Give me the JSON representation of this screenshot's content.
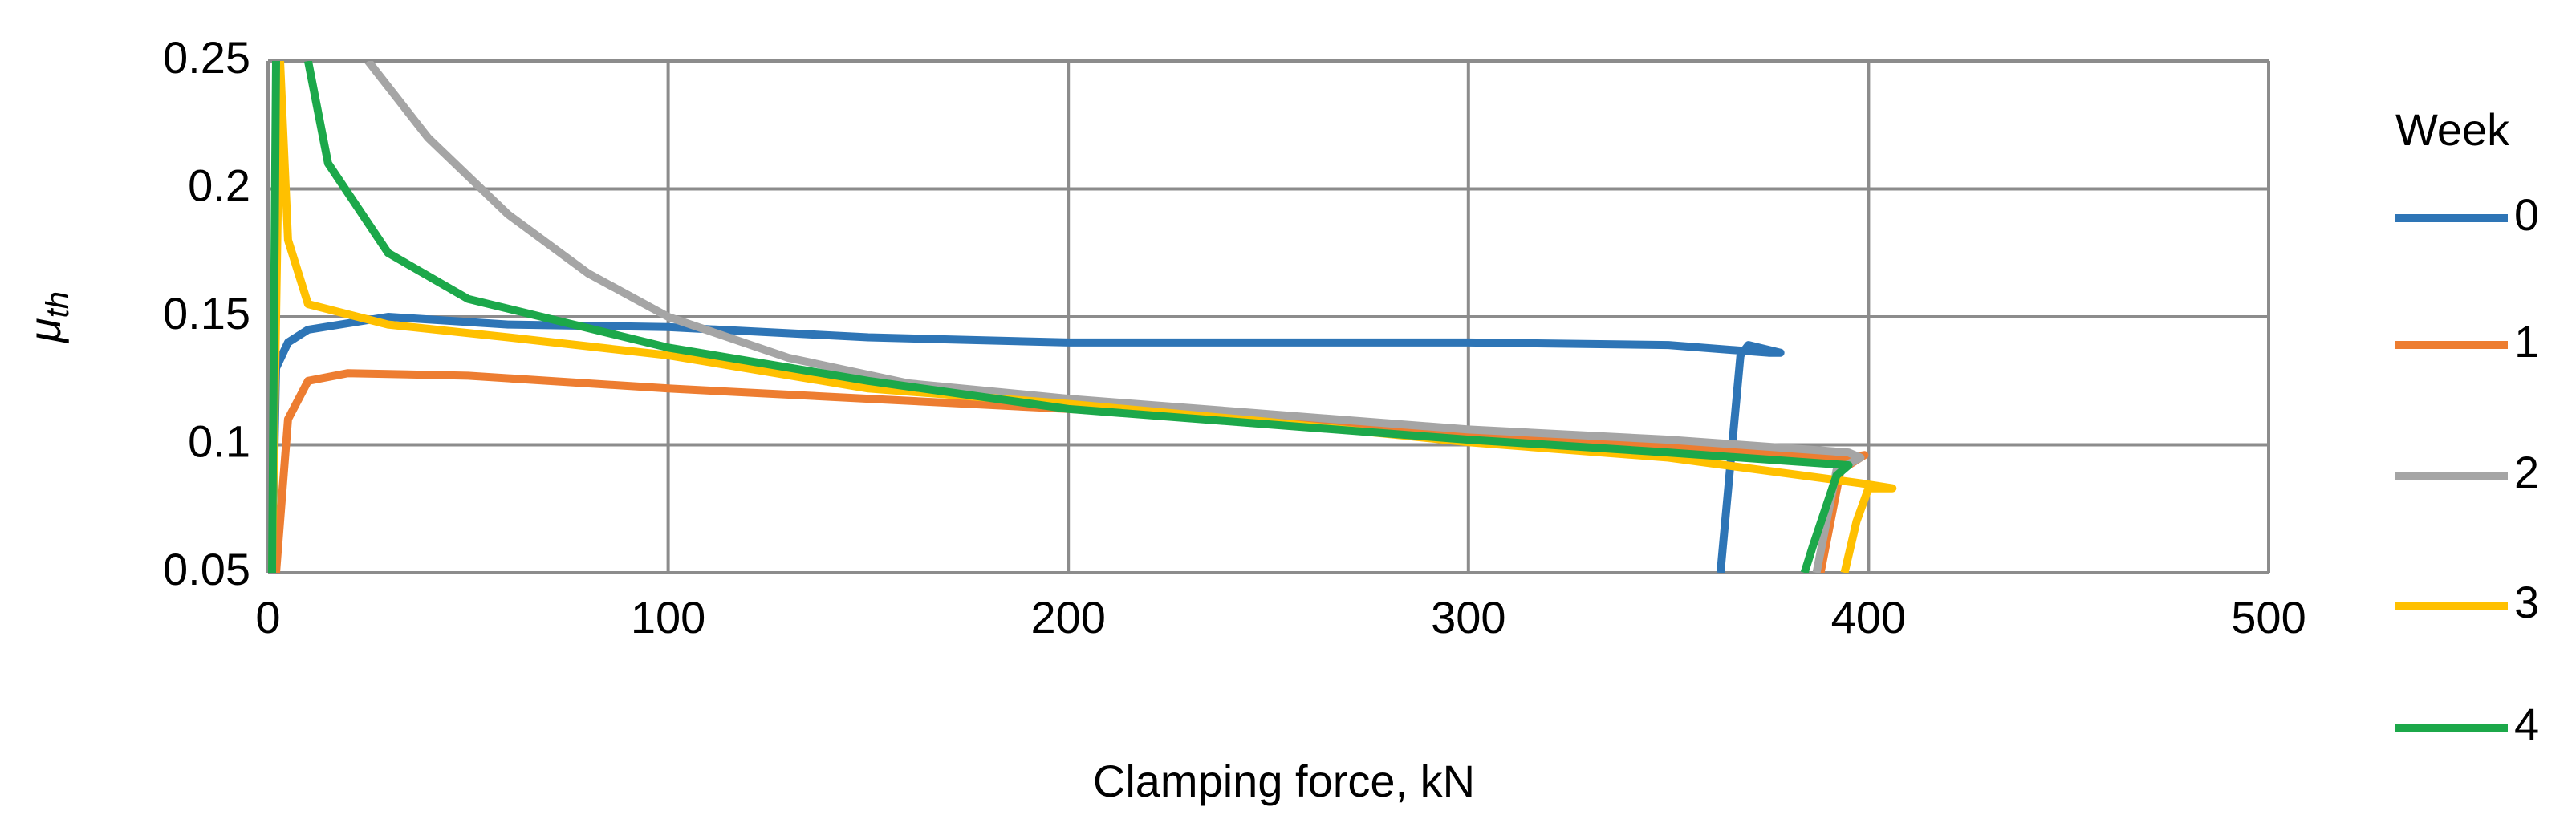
{
  "chart_data": {
    "type": "line",
    "xlabel": "Clamping force, kN",
    "ylabel": "μ",
    "ylabel_sub": "th",
    "legend_title": "Week",
    "legend": "right",
    "grid": true,
    "xlim": [
      0,
      500
    ],
    "xticks": [
      0,
      100,
      200,
      300,
      400,
      500
    ],
    "ylim": [
      0.05,
      0.25
    ],
    "yticks": [
      0.05,
      0.1,
      0.15,
      0.2,
      0.25
    ],
    "series": [
      {
        "name": "0",
        "color": "#2E75B6",
        "x": [
          1,
          2,
          5,
          10,
          30,
          60,
          100,
          150,
          200,
          250,
          300,
          350,
          375,
          378,
          370,
          368,
          363
        ],
        "values": [
          0.05,
          0.13,
          0.14,
          0.145,
          0.15,
          0.147,
          0.146,
          0.142,
          0.14,
          0.14,
          0.14,
          0.139,
          0.136,
          0.136,
          0.139,
          0.135,
          0.05
        ]
      },
      {
        "name": "1",
        "color": "#ED7D31",
        "x": [
          2,
          5,
          10,
          20,
          50,
          100,
          150,
          200,
          250,
          300,
          350,
          395,
          399,
          393,
          388
        ],
        "values": [
          0.05,
          0.11,
          0.125,
          0.128,
          0.127,
          0.122,
          0.118,
          0.114,
          0.109,
          0.104,
          0.1,
          0.095,
          0.096,
          0.09,
          0.05
        ]
      },
      {
        "name": "2",
        "color": "#A5A5A5",
        "x": [
          25,
          40,
          60,
          80,
          100,
          130,
          160,
          200,
          250,
          300,
          350,
          395,
          398,
          392,
          387
        ],
        "values": [
          0.25,
          0.22,
          0.19,
          0.167,
          0.15,
          0.134,
          0.124,
          0.118,
          0.112,
          0.106,
          0.102,
          0.097,
          0.095,
          0.09,
          0.05
        ]
      },
      {
        "name": "3",
        "color": "#FFC000",
        "x": [
          1,
          3,
          5,
          10,
          30,
          60,
          100,
          150,
          200,
          250,
          300,
          350,
          398,
          406,
          400,
          397,
          394
        ],
        "values": [
          0.05,
          0.25,
          0.18,
          0.155,
          0.147,
          0.142,
          0.135,
          0.122,
          0.116,
          0.109,
          0.101,
          0.095,
          0.085,
          0.083,
          0.083,
          0.07,
          0.05
        ]
      },
      {
        "name": "4",
        "color": "#1CA84A",
        "x": [
          1,
          2,
          6,
          10,
          15,
          30,
          50,
          100,
          150,
          200,
          250,
          300,
          350,
          395,
          392,
          386,
          384
        ],
        "values": [
          0.05,
          0.25,
          null,
          0.25,
          0.21,
          0.175,
          0.157,
          0.138,
          0.125,
          0.114,
          0.108,
          0.102,
          0.097,
          0.092,
          0.088,
          0.06,
          0.05
        ]
      }
    ]
  }
}
